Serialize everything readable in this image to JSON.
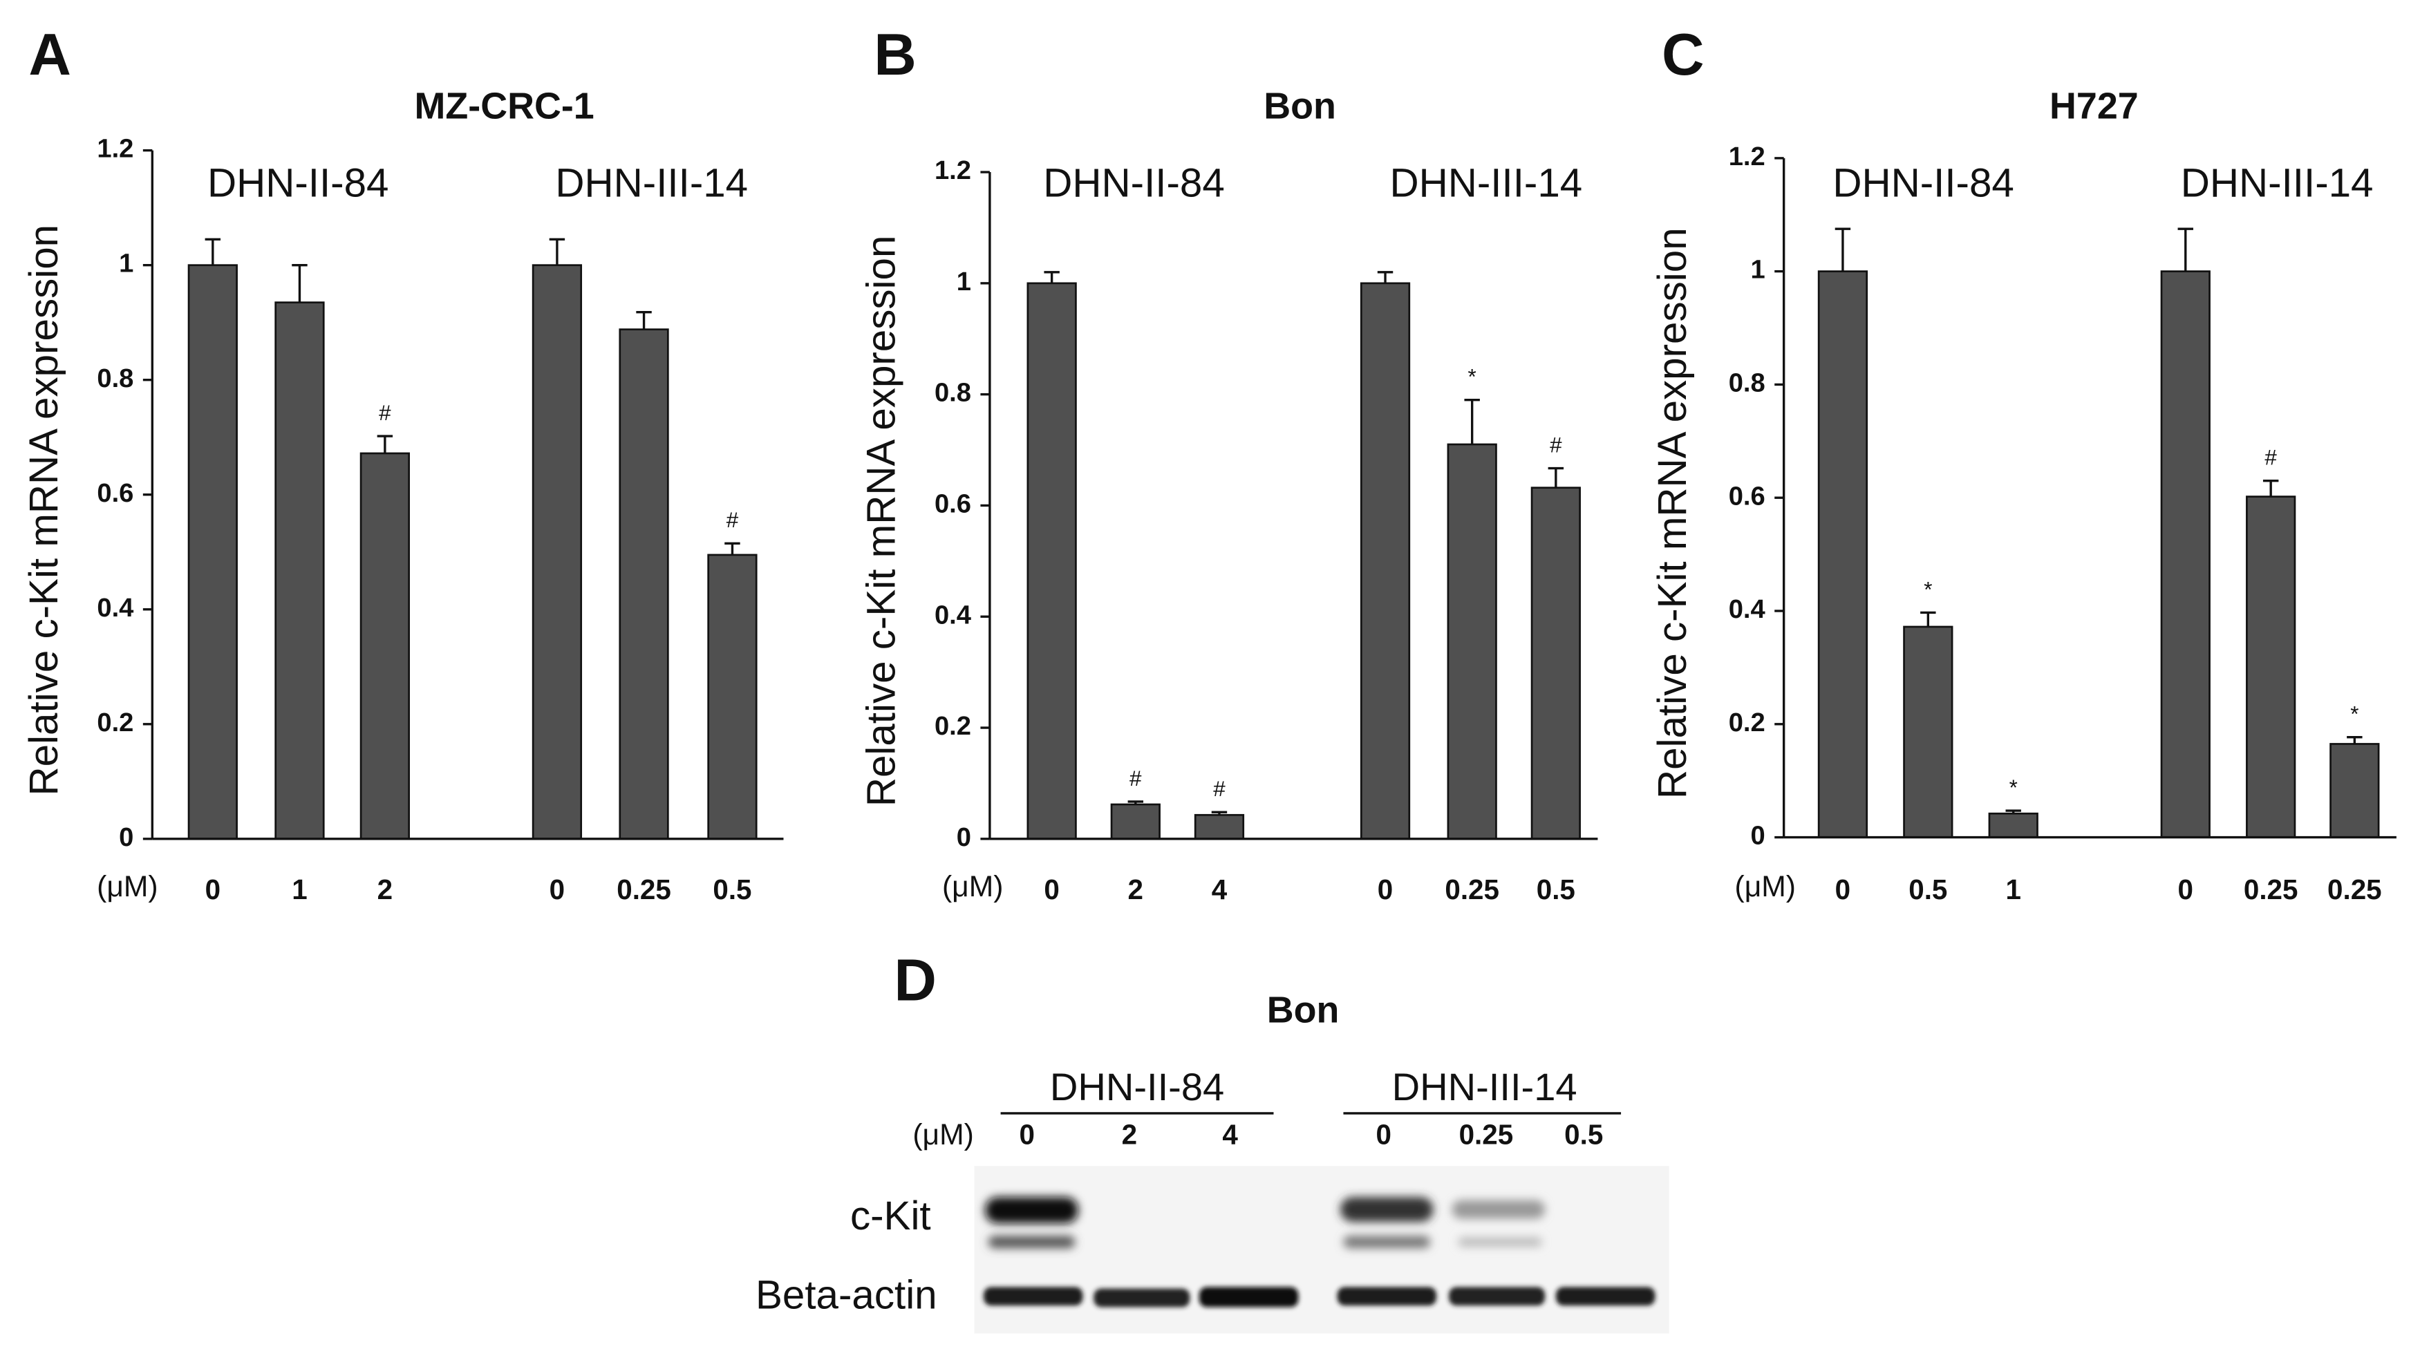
{
  "chart_data": [
    {
      "type": "bar",
      "panel": "A",
      "title": "MZ-CRC-1",
      "ylabel": "Relative c-Kit mRNA expression",
      "x_unit": "(μM)",
      "group_labels": [
        "DHN-II-84",
        "DHN-III-14"
      ],
      "categories": [
        "0",
        "1",
        "2",
        "0",
        "0.25",
        "0.5"
      ],
      "values": [
        1,
        0.935,
        0.672,
        1,
        0.888,
        0.495
      ],
      "errors": [
        0.045,
        0.065,
        0.03,
        0.045,
        0.03,
        0.02
      ],
      "markers": [
        null,
        null,
        "#",
        null,
        null,
        "#"
      ],
      "color": "#505050",
      "ylim": [
        0,
        1.2
      ],
      "yticks": [
        0,
        0.2,
        0.4,
        0.6,
        0.8,
        1,
        1.2
      ]
    },
    {
      "type": "bar",
      "panel": "B",
      "title": "Bon",
      "ylabel": "Relative c-Kit mRNA expression",
      "x_unit": "(μM)",
      "group_labels": [
        "DHN-II-84",
        "DHN-III-14"
      ],
      "categories": [
        "0",
        "2",
        "4",
        "0",
        "0.25",
        "0.5"
      ],
      "values": [
        1,
        0.062,
        0.043,
        1,
        0.71,
        0.632
      ],
      "errors": [
        0.02,
        0.005,
        0.005,
        0.02,
        0.08,
        0.035
      ],
      "markers": [
        null,
        "#",
        "#",
        null,
        "*",
        "#"
      ],
      "color": "#505050",
      "ylim": [
        0,
        1.2
      ],
      "yticks": [
        0,
        0.2,
        0.4,
        0.6,
        0.8,
        1,
        1.2
      ]
    },
    {
      "type": "bar",
      "panel": "C",
      "title": "H727",
      "ylabel": "Relative c-Kit mRNA expression",
      "x_unit": "(μM)",
      "group_labels": [
        "DHN-II-84",
        "DHN-III-14"
      ],
      "categories": [
        "0",
        "0.5",
        "1",
        "0",
        "0.25",
        "0.25"
      ],
      "values": [
        1,
        0.372,
        0.042,
        1,
        0.602,
        0.165
      ],
      "errors": [
        0.075,
        0.025,
        0.005,
        0.075,
        0.028,
        0.012
      ],
      "markers": [
        null,
        "*",
        "*",
        null,
        "#",
        "*"
      ],
      "color": "#505050",
      "ylim": [
        0,
        1.2
      ],
      "yticks": [
        0,
        0.2,
        0.4,
        0.6,
        0.8,
        1,
        1.2
      ]
    }
  ],
  "blot": {
    "panel": "D",
    "title": "Bon",
    "unit": "(μM)",
    "groups": [
      {
        "name": "DHN-II-84",
        "lanes": [
          "0",
          "2",
          "4"
        ]
      },
      {
        "name": "DHN-III-14",
        "lanes": [
          "0",
          "0.25",
          "0.5"
        ]
      }
    ],
    "rows": [
      "c-Kit",
      "Beta-actin"
    ]
  }
}
